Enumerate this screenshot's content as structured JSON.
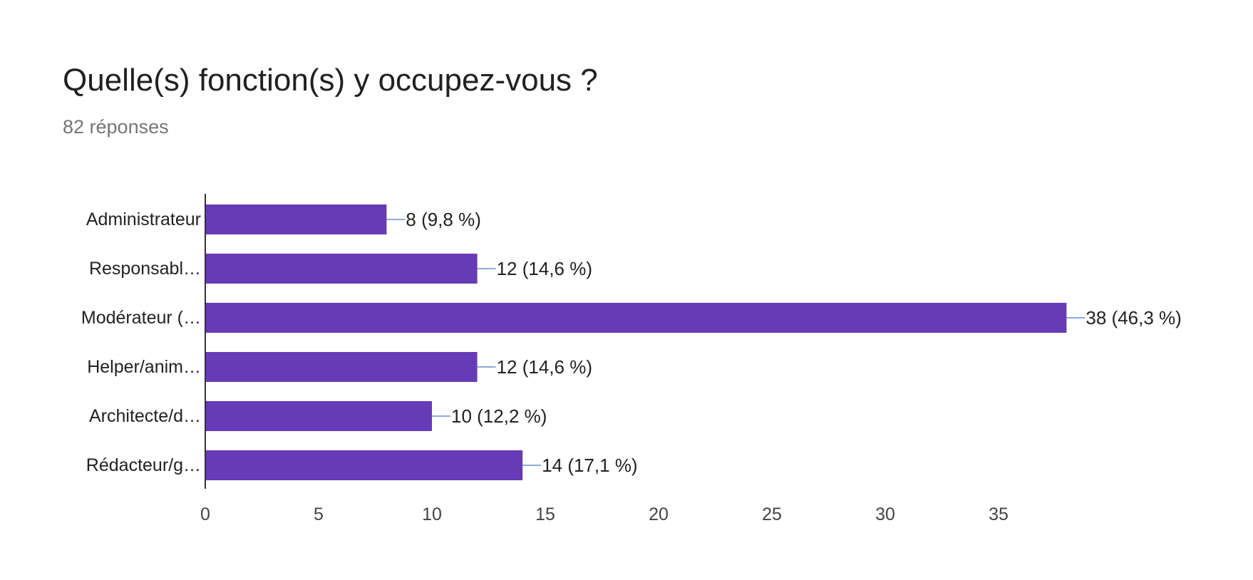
{
  "header": {
    "title": "Quelle(s) fonction(s) y occupez-vous ?",
    "subtitle": "82 réponses"
  },
  "colors": {
    "bar": "#673ab7",
    "leader": "#8faadc",
    "axis": "#333333"
  },
  "chart_data": {
    "type": "bar",
    "orientation": "horizontal",
    "title": "Quelle(s) fonction(s) y occupez-vous ?",
    "subtitle": "82 réponses",
    "xlabel": "",
    "ylabel": "",
    "categories": [
      "Administrateur",
      "Responsabl…",
      "Modérateur (…",
      "Helper/anim…",
      "Architecte/d…",
      "Rédacteur/g…"
    ],
    "values": [
      8,
      12,
      38,
      12,
      10,
      14
    ],
    "data_labels": [
      "8 (9,8 %)",
      "12 (14,6 %)",
      "38 (46,3 %)",
      "12 (14,6 %)",
      "10 (12,2 %)",
      "14 (17,1 %)"
    ],
    "xlim": [
      0,
      38
    ],
    "xticks": [
      0,
      5,
      10,
      15,
      20,
      25,
      30,
      35
    ],
    "grid": false,
    "legend": "none"
  }
}
